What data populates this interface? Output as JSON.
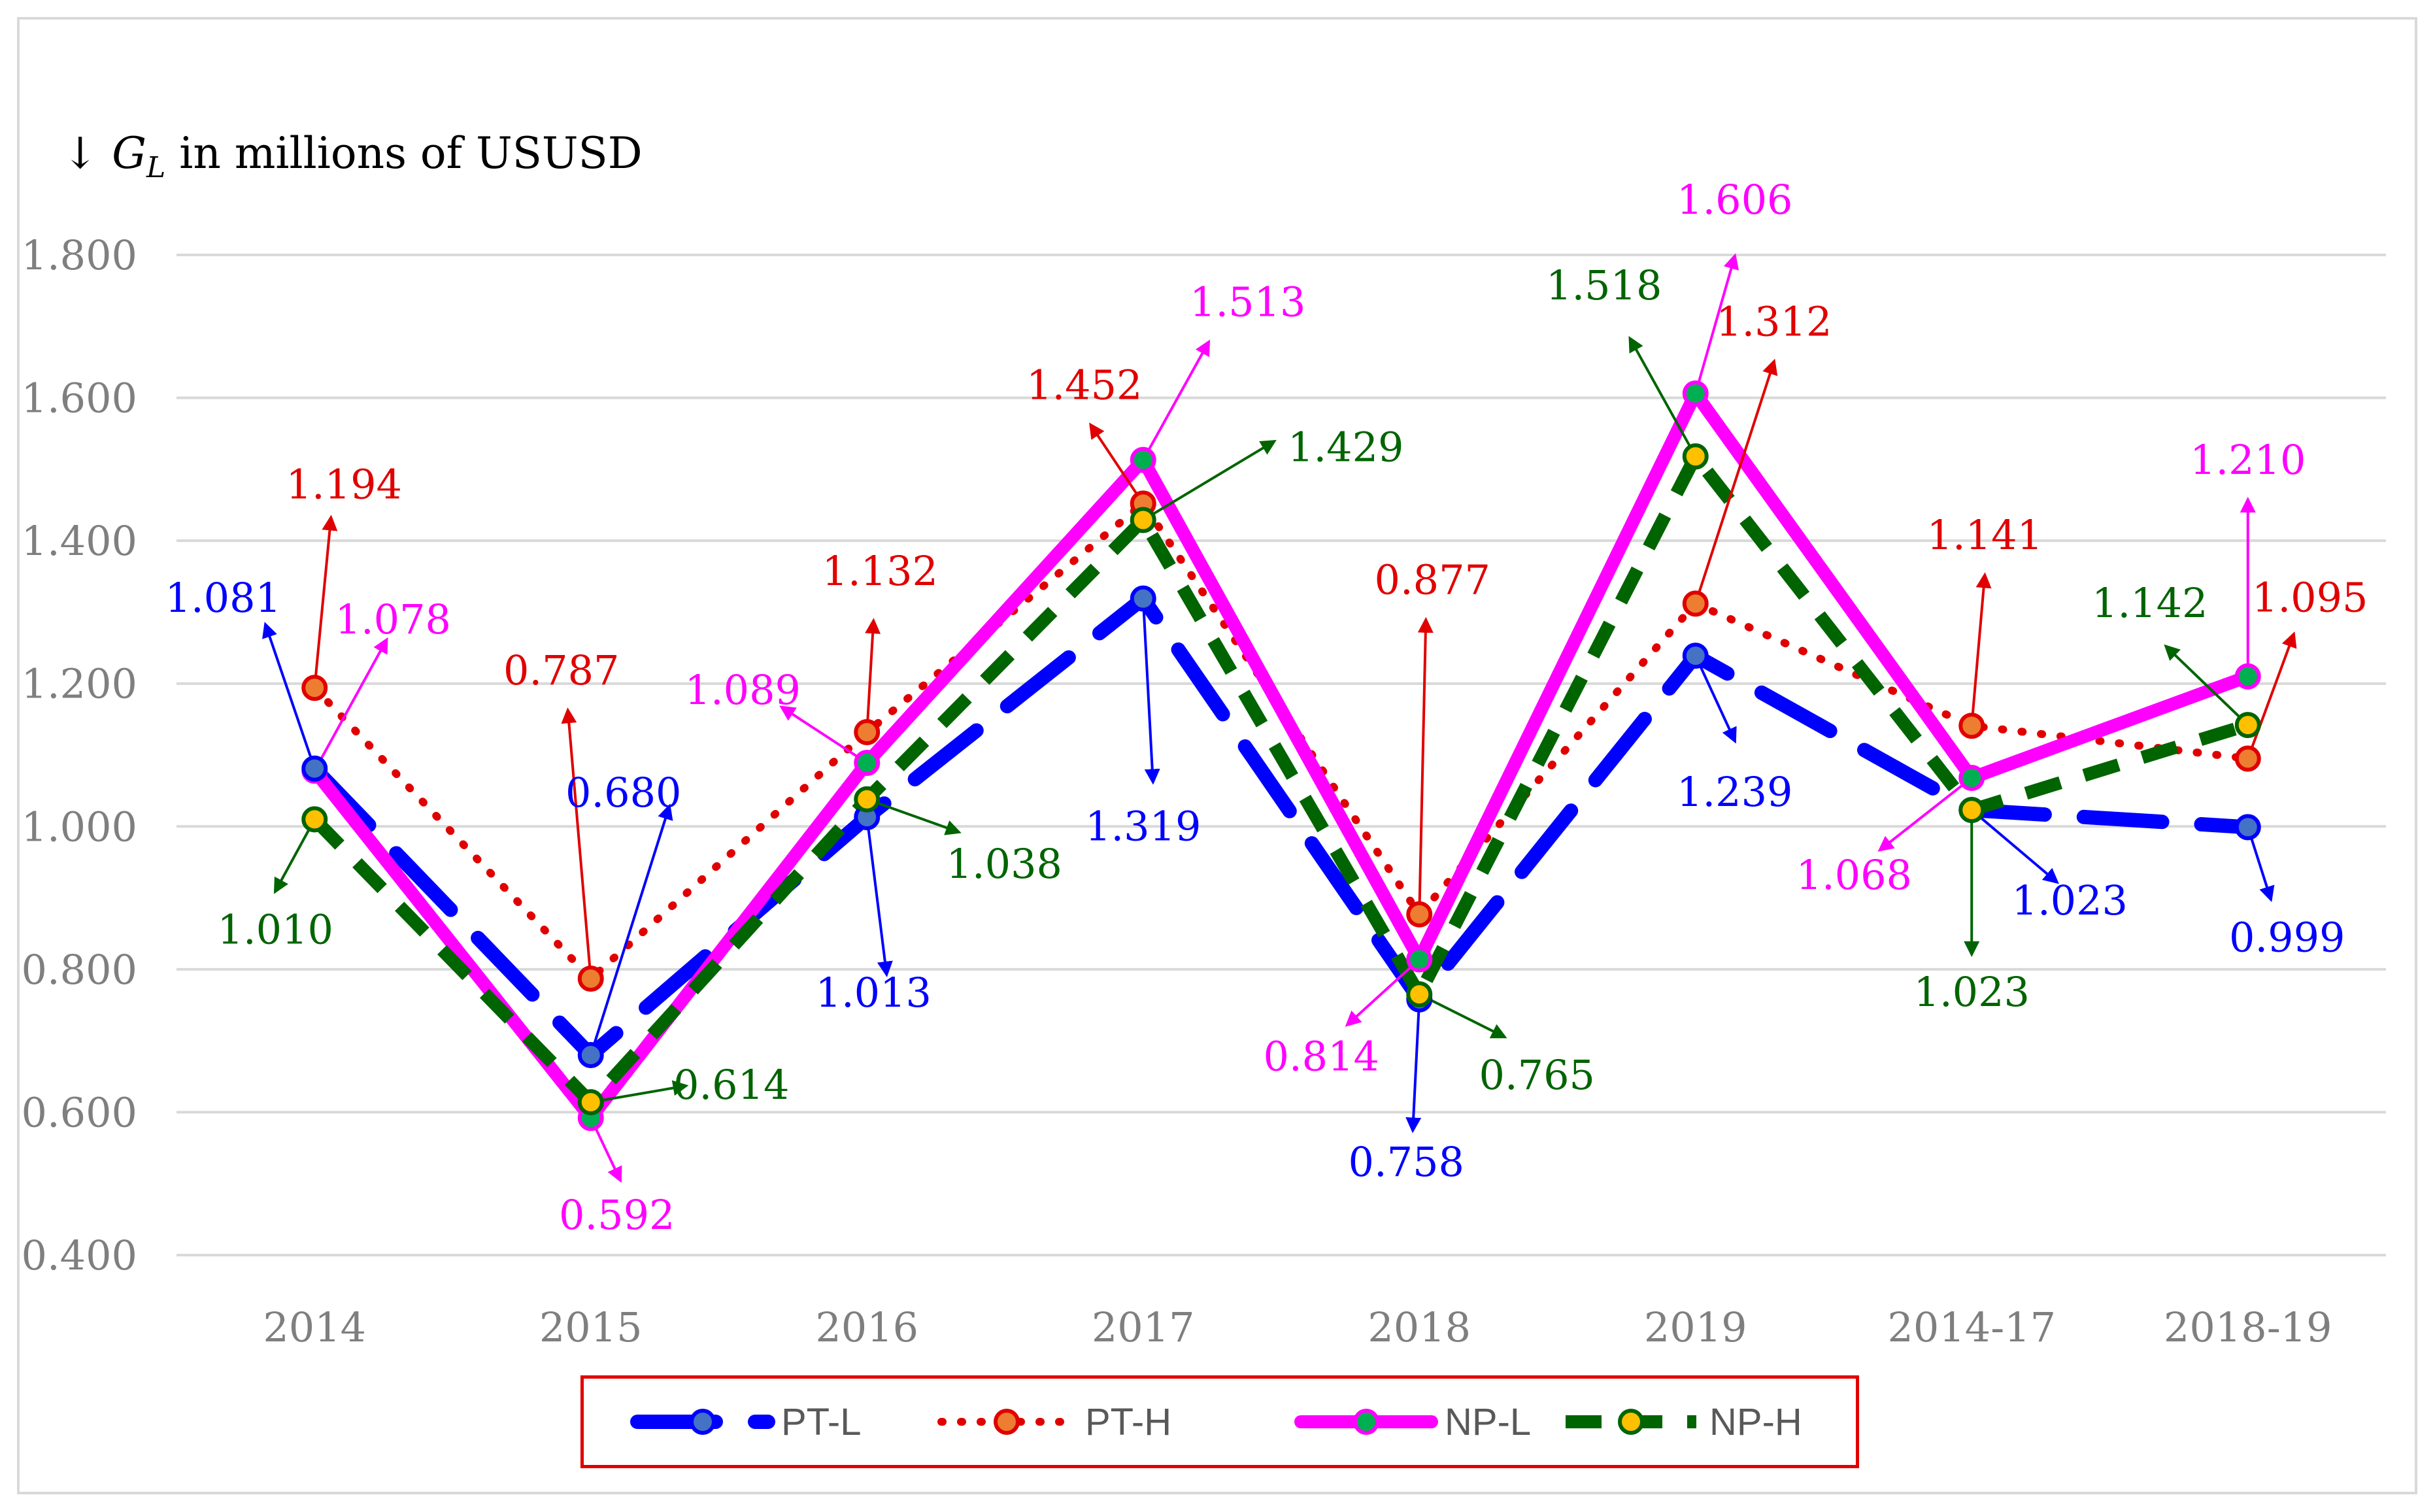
{
  "chart_data": {
    "type": "line",
    "ylabel": {
      "arrow": "↓",
      "symbol": "G",
      "subscript": "L",
      "text": " in millions of USUSD"
    },
    "ylim": [
      0.4,
      1.8
    ],
    "yticks": [
      "0.400",
      "0.600",
      "0.800",
      "1.000",
      "1.200",
      "1.400",
      "1.600",
      "1.800"
    ],
    "categories": [
      "2014",
      "2015",
      "2016",
      "2017",
      "2018",
      "2019",
      "2014-17",
      "2018-19"
    ],
    "grid": true,
    "legend_position": "bottom",
    "series": [
      {
        "name": "PT-L",
        "color": "#0000ff",
        "marker": "#4472c4",
        "values": [
          1.081,
          0.68,
          1.013,
          1.319,
          0.758,
          1.239,
          1.023,
          0.999
        ],
        "labels": [
          "1.081",
          "0.680",
          "1.013",
          "1.319",
          "0.758",
          "1.239",
          "1.023",
          "0.999"
        ]
      },
      {
        "name": "PT-H",
        "color": "#e00000",
        "marker": "#ed7d31",
        "values": [
          1.194,
          0.787,
          1.132,
          1.452,
          0.877,
          1.312,
          1.141,
          1.095
        ],
        "labels": [
          "1.194",
          "0.787",
          "1.132",
          "1.452",
          "0.877",
          "1.312",
          "1.141",
          "1.095"
        ]
      },
      {
        "name": "NP-L",
        "color": "#ff00ff",
        "marker": "#00b050",
        "values": [
          1.078,
          0.592,
          1.089,
          1.513,
          0.814,
          1.606,
          1.068,
          1.21
        ],
        "labels": [
          "1.078",
          "0.592",
          "1.089",
          "1.513",
          "0.814",
          "1.606",
          "1.068",
          "1.210"
        ]
      },
      {
        "name": "NP-H",
        "color": "#006400",
        "marker": "#ffc000",
        "values": [
          1.01,
          0.614,
          1.038,
          1.429,
          0.765,
          1.518,
          1.023,
          1.142
        ],
        "labels": [
          "1.010",
          "0.614",
          "1.038",
          "1.429",
          "0.765",
          "1.518",
          "1.023",
          "1.142"
        ]
      }
    ]
  }
}
